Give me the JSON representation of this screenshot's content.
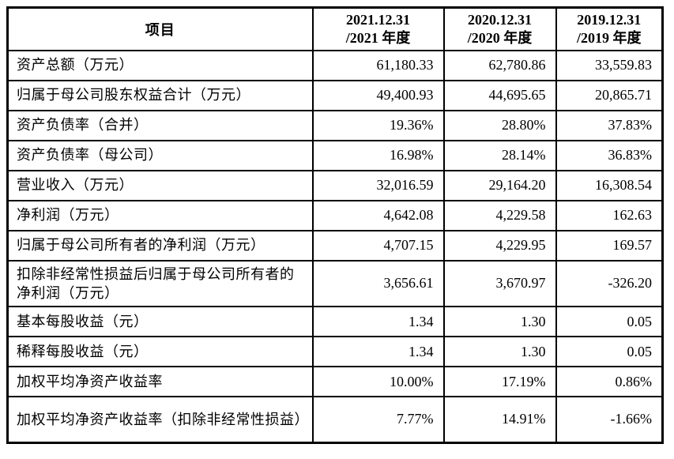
{
  "table": {
    "item_header": "项目",
    "columns": [
      {
        "line1": "2021.12.31",
        "line2": "/2021 年度"
      },
      {
        "line1": "2020.12.31",
        "line2": "/2020 年度"
      },
      {
        "line1": "2019.12.31",
        "line2": "/2019 年度"
      }
    ],
    "rows": [
      {
        "label": "资产总额（万元）",
        "values": [
          "61,180.33",
          "62,780.86",
          "33,559.83"
        ]
      },
      {
        "label": "归属于母公司股东权益合计（万元）",
        "values": [
          "49,400.93",
          "44,695.65",
          "20,865.71"
        ]
      },
      {
        "label": "资产负债率（合并）",
        "values": [
          "19.36%",
          "28.80%",
          "37.83%"
        ]
      },
      {
        "label": "资产负债率（母公司）",
        "values": [
          "16.98%",
          "28.14%",
          "36.83%"
        ]
      },
      {
        "label": "营业收入（万元）",
        "values": [
          "32,016.59",
          "29,164.20",
          "16,308.54"
        ]
      },
      {
        "label": "净利润（万元）",
        "values": [
          "4,642.08",
          "4,229.58",
          "162.63"
        ]
      },
      {
        "label": "归属于母公司所有者的净利润（万元）",
        "values": [
          "4,707.15",
          "4,229.95",
          "169.57"
        ]
      },
      {
        "label": "扣除非经常性损益后归属于母公司所有者的净利润（万元）",
        "values": [
          "3,656.61",
          "3,670.97",
          "-326.20"
        ]
      },
      {
        "label": "基本每股收益（元）",
        "values": [
          "1.34",
          "1.30",
          "0.05"
        ]
      },
      {
        "label": "稀释每股收益（元）",
        "values": [
          "1.34",
          "1.30",
          "0.05"
        ]
      },
      {
        "label": "加权平均净资产收益率",
        "values": [
          "10.00%",
          "17.19%",
          "0.86%"
        ]
      },
      {
        "label": "加权平均净资产收益率（扣除非经常性损益）",
        "values": [
          "7.77%",
          "14.91%",
          "-1.66%"
        ]
      }
    ]
  }
}
